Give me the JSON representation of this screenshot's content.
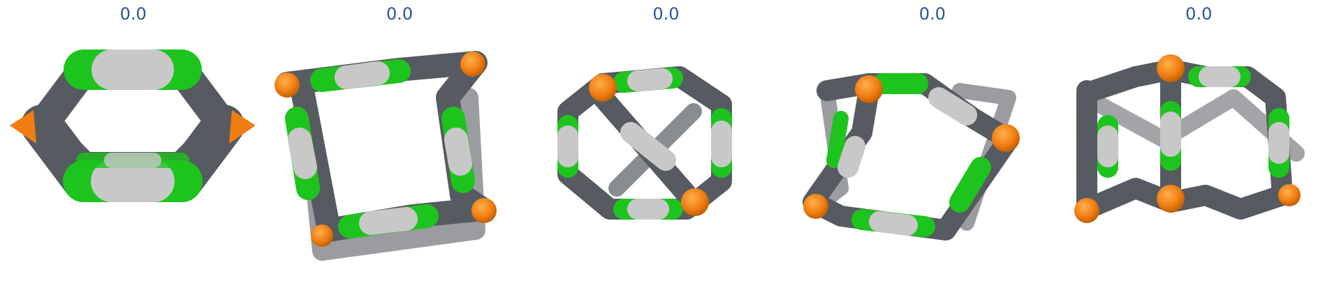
{
  "panels": [
    {
      "score": "0.0",
      "shape": "flat-hexagonal-ring-molecule"
    },
    {
      "score": "0.0",
      "shape": "square-prism-cage-molecule"
    },
    {
      "score": "0.0",
      "shape": "twisted-cube-cage-molecule"
    },
    {
      "score": "0.0",
      "shape": "open-tetrahedral-cage-molecule"
    },
    {
      "score": "0.0",
      "shape": "prismatic-cage-molecule"
    }
  ],
  "colors": {
    "score_text": "#2a5599",
    "metal_node": "#f07d12",
    "linker_carbon": "#565a61",
    "linker_green": "#1dc41d",
    "linker_white": "#c8c8c8"
  }
}
